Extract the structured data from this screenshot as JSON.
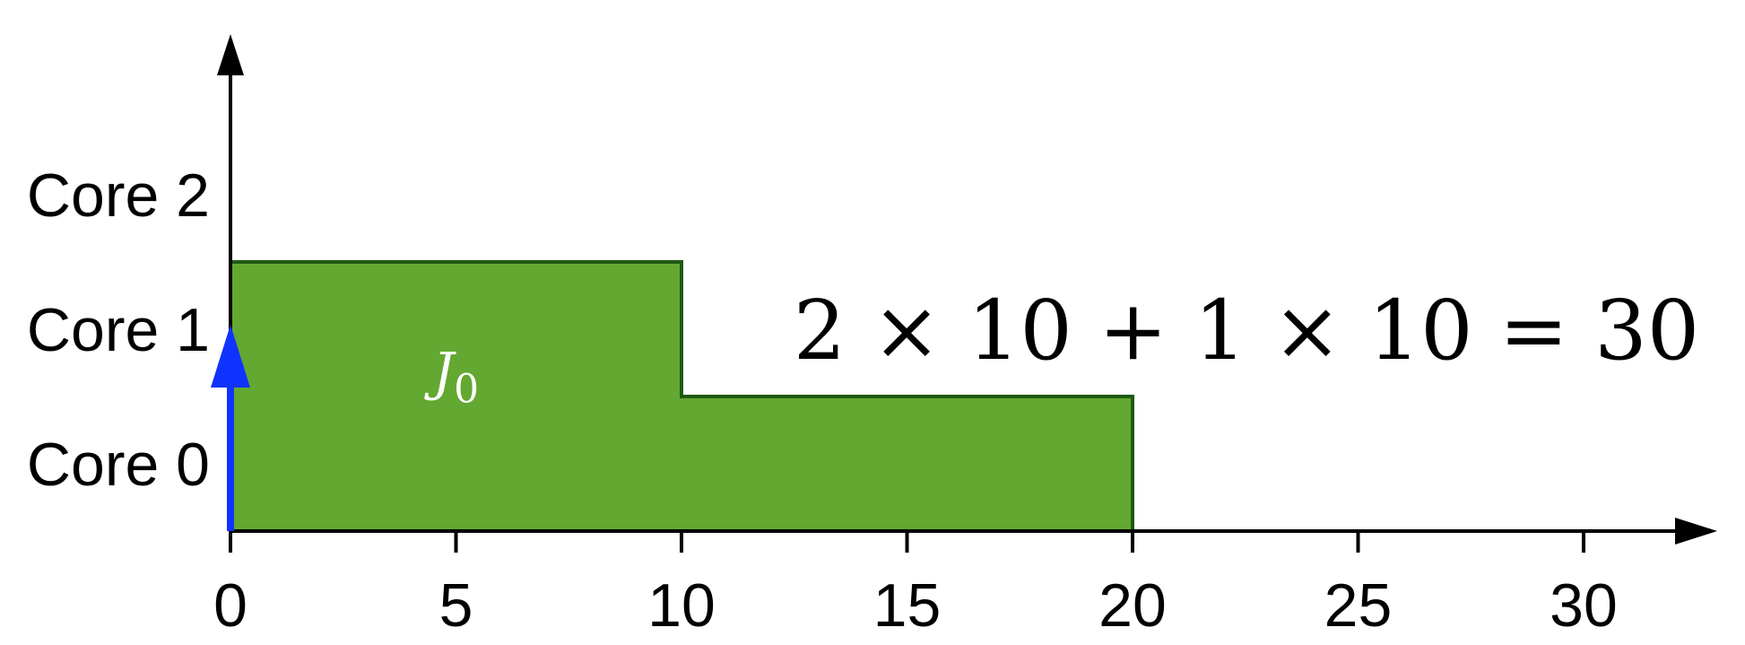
{
  "chart_data": {
    "type": "schedule",
    "x_ticks": [
      0,
      5,
      10,
      15,
      20,
      25,
      30
    ],
    "x_range": [
      0,
      32
    ],
    "y_categories": [
      "Core 0",
      "Core 1",
      "Core 2"
    ],
    "jobs": [
      {
        "name": "J",
        "subscript": "0",
        "color": "#63a830",
        "border_color": "#1f5a12",
        "segments": [
          {
            "start": 0,
            "end": 10,
            "cores": 2
          },
          {
            "start": 10,
            "end": 20,
            "cores": 1
          }
        ]
      }
    ],
    "arrival_marker": {
      "time": 0,
      "color": "#1033ff"
    },
    "equation": "2 × 10 + 1 × 10 = 30"
  }
}
